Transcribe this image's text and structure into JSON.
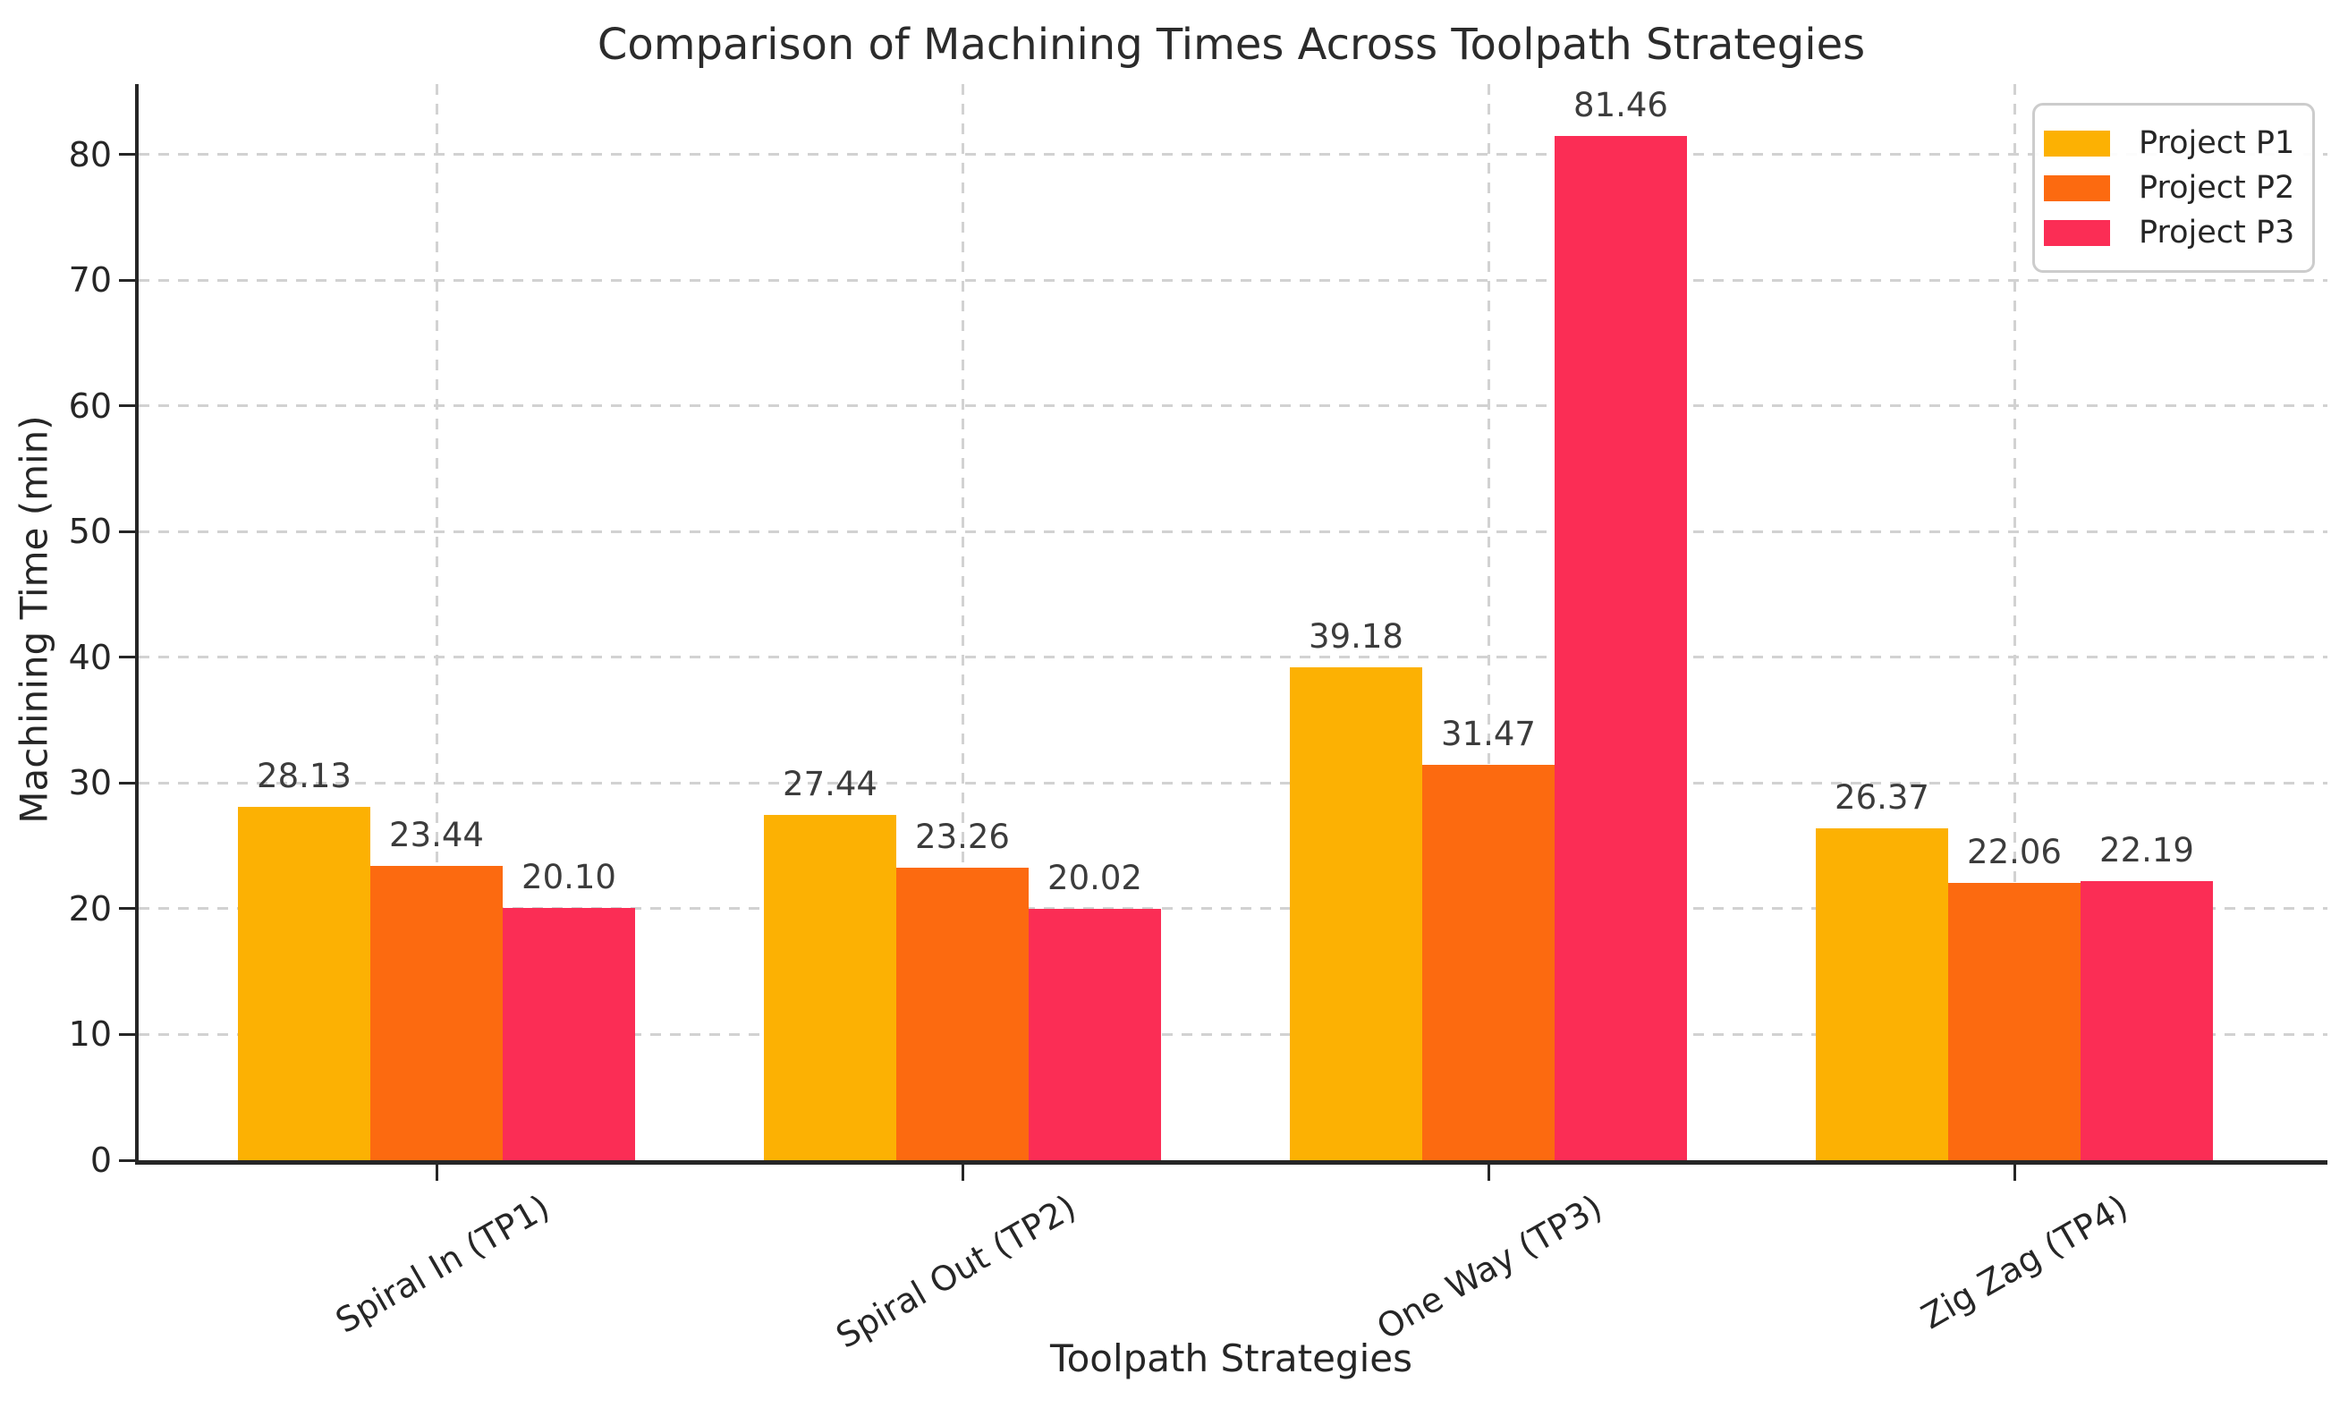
{
  "chart_data": {
    "type": "bar",
    "title": "Comparison of Machining Times Across Toolpath Strategies",
    "xlabel": "Toolpath Strategies",
    "ylabel": "Machining Time (min)",
    "categories": [
      "Spiral In (TP1)",
      "Spiral Out (TP2)",
      "One Way (TP3)",
      "Zig Zag (TP4)"
    ],
    "series": [
      {
        "name": "Project P1",
        "color": "#FCB103",
        "values": [
          28.13,
          27.44,
          39.18,
          26.37
        ]
      },
      {
        "name": "Project P2",
        "color": "#FC6A10",
        "values": [
          23.44,
          23.26,
          31.47,
          22.06
        ]
      },
      {
        "name": "Project P3",
        "color": "#FB2D55",
        "values": [
          20.1,
          20.02,
          81.46,
          22.19
        ]
      }
    ],
    "yticks": [
      0,
      10,
      20,
      30,
      40,
      50,
      60,
      70,
      80
    ],
    "ylim": [
      0,
      85.6
    ],
    "grid": true,
    "grid_color": "#d2d2d2",
    "axis_color": "#262626",
    "value_label_color": "#3c3c3c",
    "value_label_decimals": 2,
    "xtick_rotation_deg": 30,
    "legend": {
      "position": "upper right",
      "entries": [
        "Project P1",
        "Project P2",
        "Project P3"
      ]
    }
  }
}
